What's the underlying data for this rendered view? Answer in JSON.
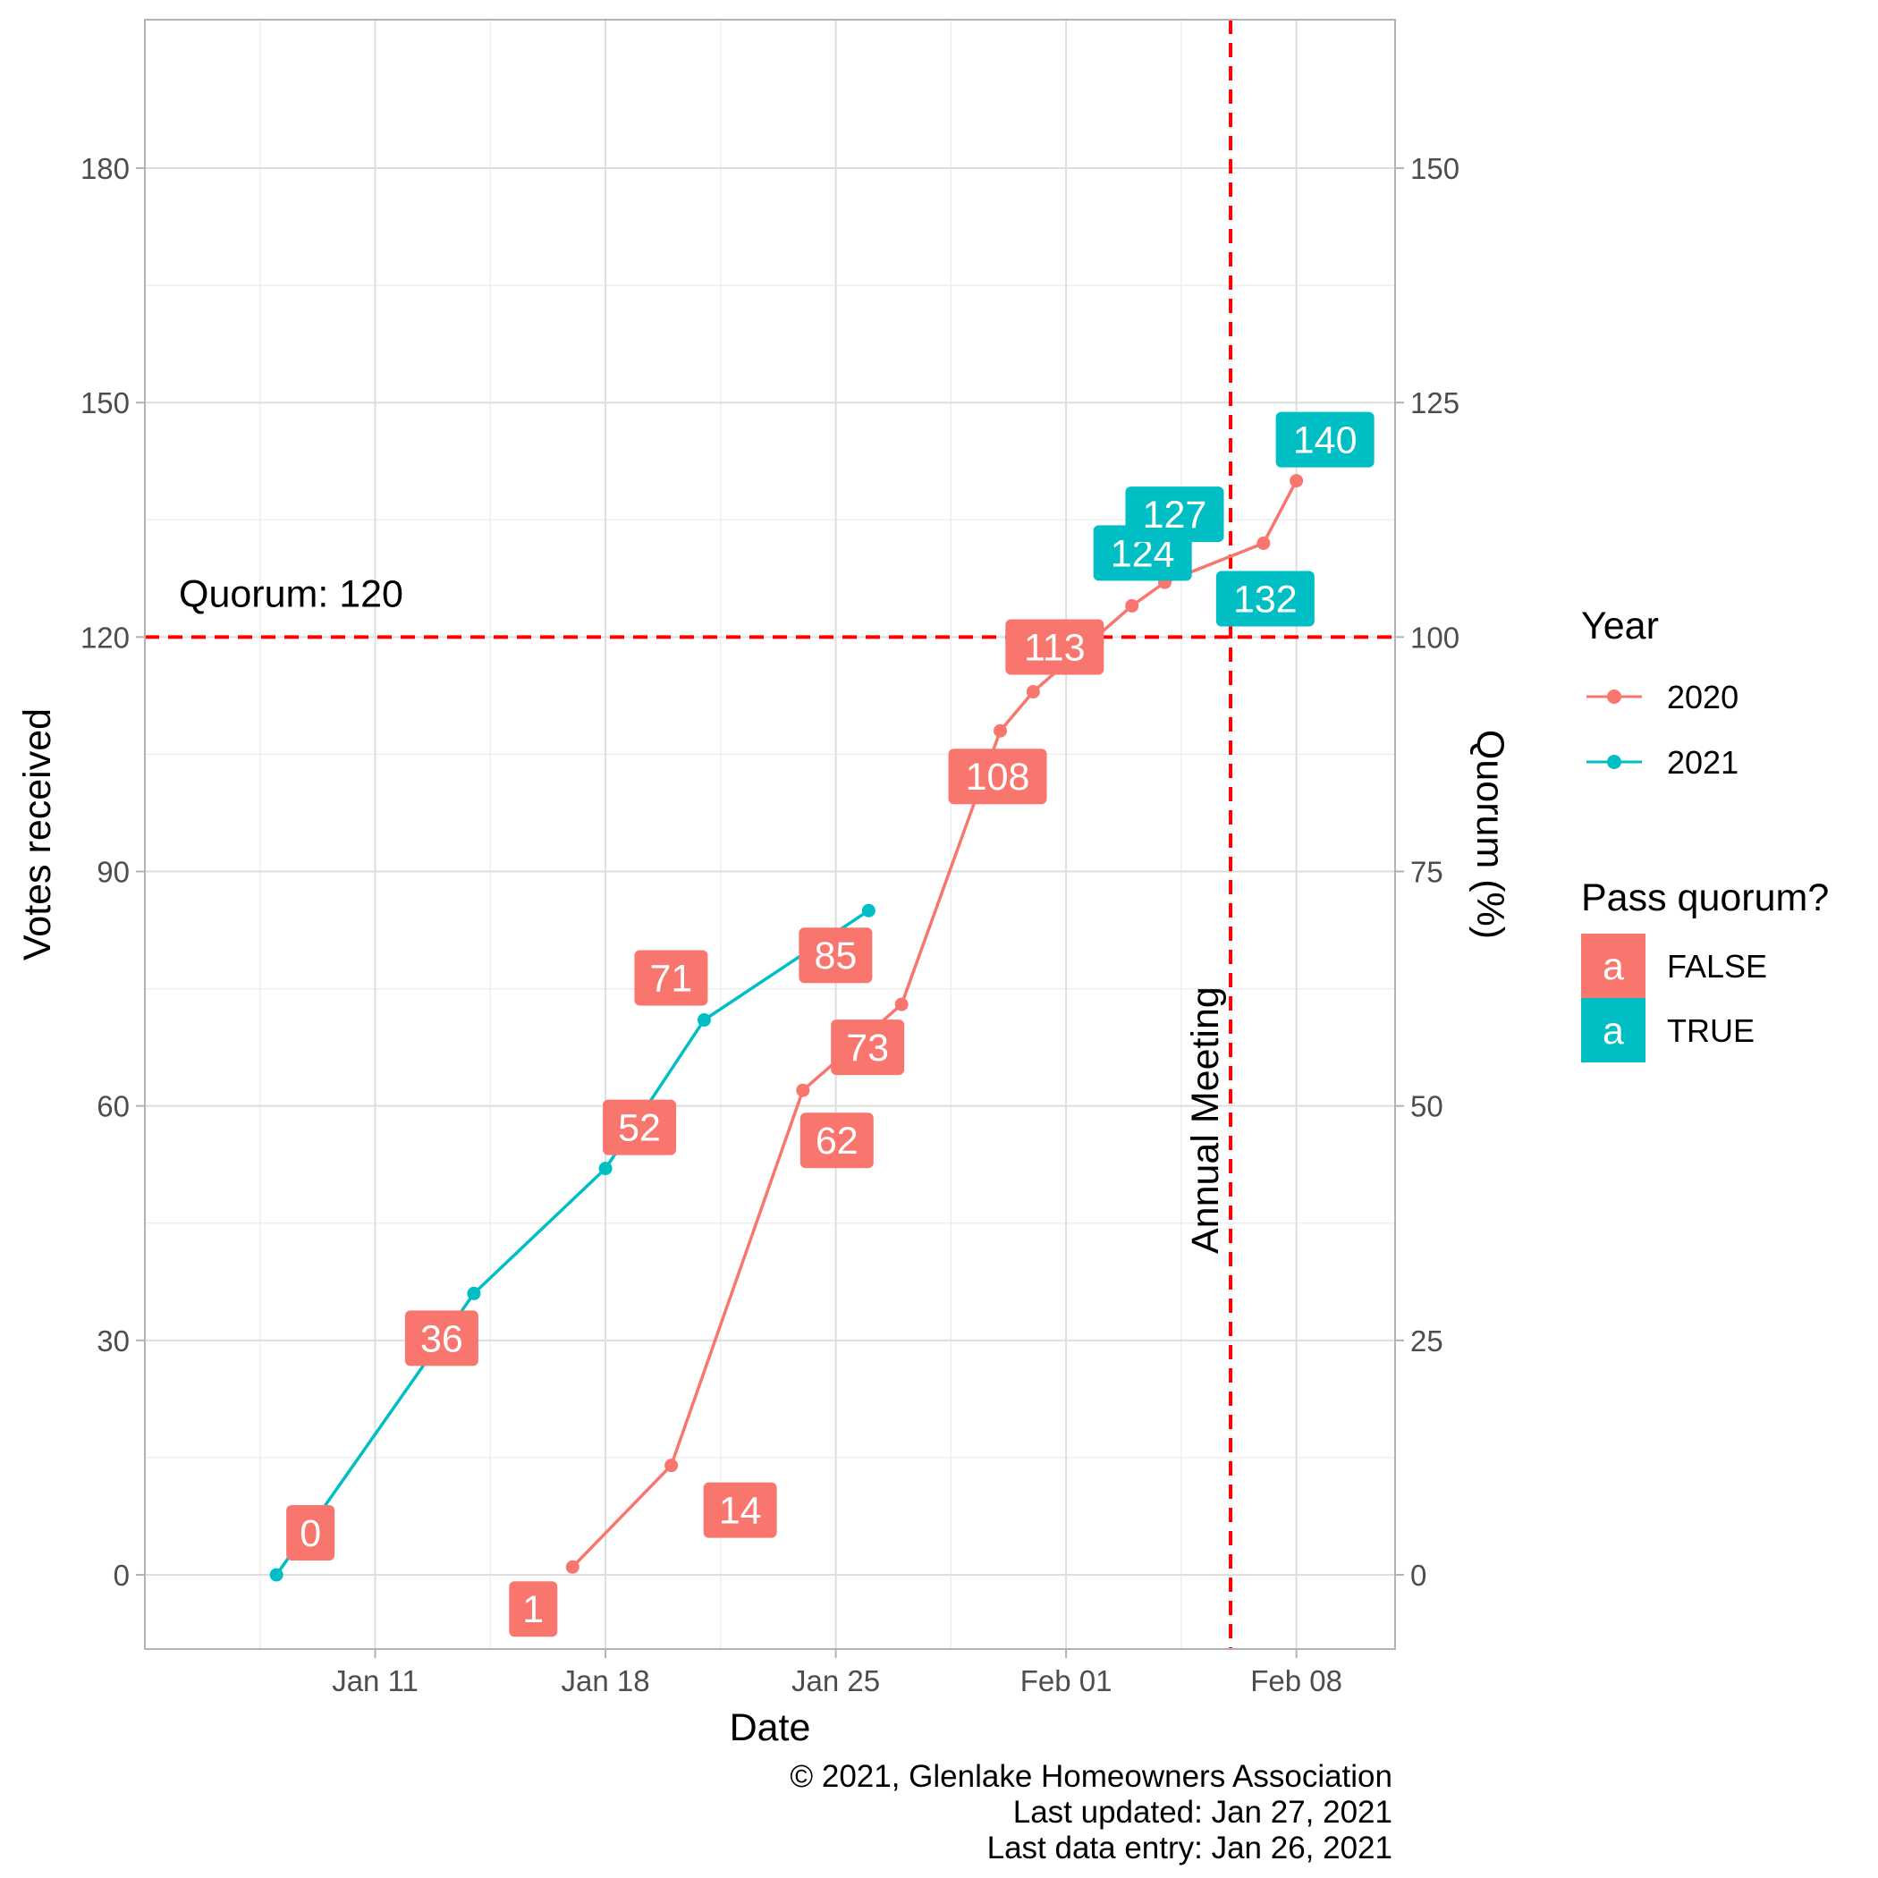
{
  "chart_data": {
    "type": "line",
    "xlabel": "Date",
    "ylabel": "Votes received",
    "y2label": "Quorum (%)",
    "x_ticks": [
      {
        "date": "2021-01-11",
        "label": "Jan 11"
      },
      {
        "date": "2021-01-18",
        "label": "Jan 18"
      },
      {
        "date": "2021-01-25",
        "label": "Jan 25"
      },
      {
        "date": "2021-02-01",
        "label": "Feb 01"
      },
      {
        "date": "2021-02-08",
        "label": "Feb 08"
      }
    ],
    "xlim": [
      "2021-01-04",
      "2021-02-11"
    ],
    "ylim": [
      -9.5,
      199
    ],
    "y_ticks": [
      0,
      30,
      60,
      90,
      120,
      150,
      180
    ],
    "y2_ticks": [
      0,
      25,
      50,
      75,
      100,
      125,
      150
    ],
    "grid": true,
    "series": [
      {
        "name": "2020",
        "color": "#F8766D",
        "points": [
          {
            "x": "2021-01-17",
            "y": 1,
            "label": "1",
            "pass": false
          },
          {
            "x": "2021-01-20",
            "y": 14,
            "label": "14",
            "pass": false
          },
          {
            "x": "2021-01-24",
            "y": 62,
            "label": "62",
            "pass": false
          },
          {
            "x": "2021-01-27",
            "y": 73,
            "label": "73",
            "pass": false
          },
          {
            "x": "2021-01-30",
            "y": 108,
            "label": "108",
            "pass": false
          },
          {
            "x": "2021-01-31",
            "y": 113,
            "label": "113",
            "pass": false
          },
          {
            "x": "2021-02-03",
            "y": 124,
            "label": "124",
            "pass": true
          },
          {
            "x": "2021-02-04",
            "y": 127,
            "label": "127",
            "pass": true
          },
          {
            "x": "2021-02-07",
            "y": 132,
            "label": "132",
            "pass": true
          },
          {
            "x": "2021-02-08",
            "y": 140,
            "label": "140",
            "pass": true
          }
        ]
      },
      {
        "name": "2021",
        "color": "#00BFC4",
        "points": [
          {
            "x": "2021-01-08",
            "y": 0,
            "label": "0",
            "pass": false
          },
          {
            "x": "2021-01-14",
            "y": 36,
            "label": "36",
            "pass": false
          },
          {
            "x": "2021-01-18",
            "y": 52,
            "label": "52",
            "pass": false
          },
          {
            "x": "2021-01-21",
            "y": 71,
            "label": "71",
            "pass": false
          },
          {
            "x": "2021-01-26",
            "y": 85,
            "label": "85",
            "pass": false
          }
        ]
      }
    ],
    "reference_lines": [
      {
        "orientation": "horizontal",
        "y": 120,
        "label": "Quorum: 120",
        "color": "#FF0000",
        "style": "dashed"
      },
      {
        "orientation": "vertical",
        "x": "2021-02-06",
        "label": "Annual Meeting",
        "color": "#FF0000",
        "style": "dashed"
      }
    ],
    "legend": {
      "position": "right",
      "year_title": "Year",
      "year_items": [
        {
          "name": "2020",
          "color": "#F8766D"
        },
        {
          "name": "2021",
          "color": "#00BFC4"
        }
      ],
      "pass_title": "Pass quorum?",
      "pass_items": [
        {
          "key_text": "a",
          "name": "FALSE",
          "color": "#F8766D"
        },
        {
          "key_text": "a",
          "name": "TRUE",
          "color": "#00BFC4"
        }
      ]
    },
    "caption": [
      "© 2021, Glenlake Homeowners Association",
      "Last updated: Jan 27, 2021",
      "Last data entry: Jan 26, 2021"
    ]
  }
}
